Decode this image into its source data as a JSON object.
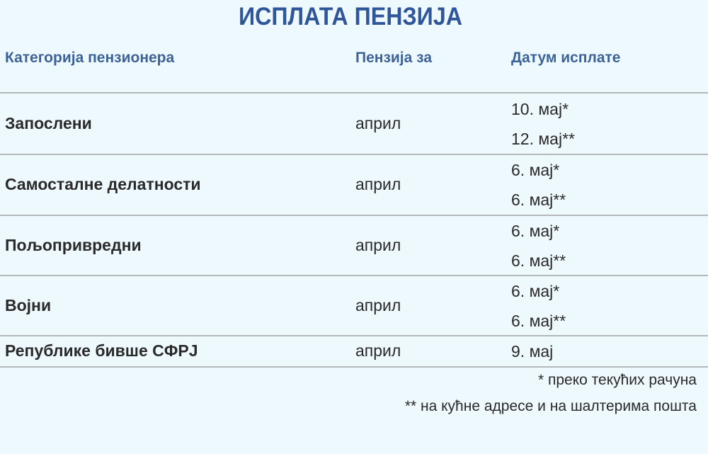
{
  "title": "ИСПЛАТА ПЕНЗИЈА",
  "headers": [
    "Категорија пензионера",
    "Пензија за",
    "Датум исплате"
  ],
  "rows": [
    {
      "category": "Запослени",
      "month": "април",
      "dates": [
        "10. мај*",
        "12. мај**"
      ]
    },
    {
      "category": "Самосталне делатности",
      "month": "април",
      "dates": [
        "6. мај*",
        "6. мај**"
      ]
    },
    {
      "category": "Пољопривредни",
      "month": "април",
      "dates": [
        "6. мај*",
        "6. мај**"
      ]
    },
    {
      "category": "Војни",
      "month": "април",
      "dates": [
        "6. мај*",
        "6. мај**"
      ]
    },
    {
      "category": "Републике бивше СФРЈ",
      "month": "април",
      "dates": [
        "9. мај"
      ]
    }
  ],
  "footnotes": [
    "* преко текућих рачуна",
    "** на кућне адресе и на шалтерима пошта"
  ],
  "colors": {
    "background": "#eef9fd",
    "brand_title_color": "#30569a",
    "header_color": "#3d6296",
    "text_color": "#2a2a2a"
  }
}
